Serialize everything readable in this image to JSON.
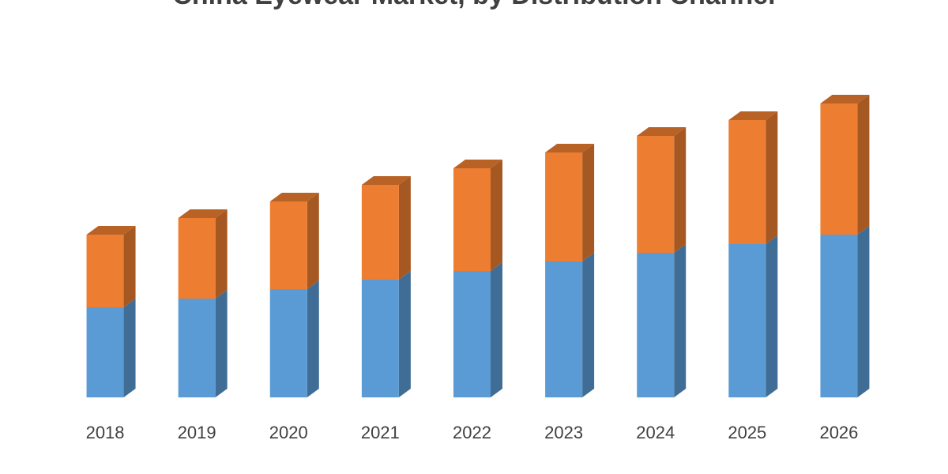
{
  "chart_data": {
    "type": "bar3d_stacked",
    "title": "China Eyewear Market, by Distribution Channel",
    "categories": [
      "2018",
      "2019",
      "2020",
      "2021",
      "2022",
      "2023",
      "2024",
      "2025",
      "2026"
    ],
    "series": [
      {
        "color": "#5b9bd5",
        "values": [
          114,
          125,
          137,
          149,
          160,
          172,
          183,
          194,
          206
        ]
      },
      {
        "color": "#ed7d31",
        "values": [
          92,
          102,
          111,
          120,
          130,
          138,
          148,
          157,
          166
        ]
      }
    ],
    "ylim": [
      0,
      400
    ]
  }
}
